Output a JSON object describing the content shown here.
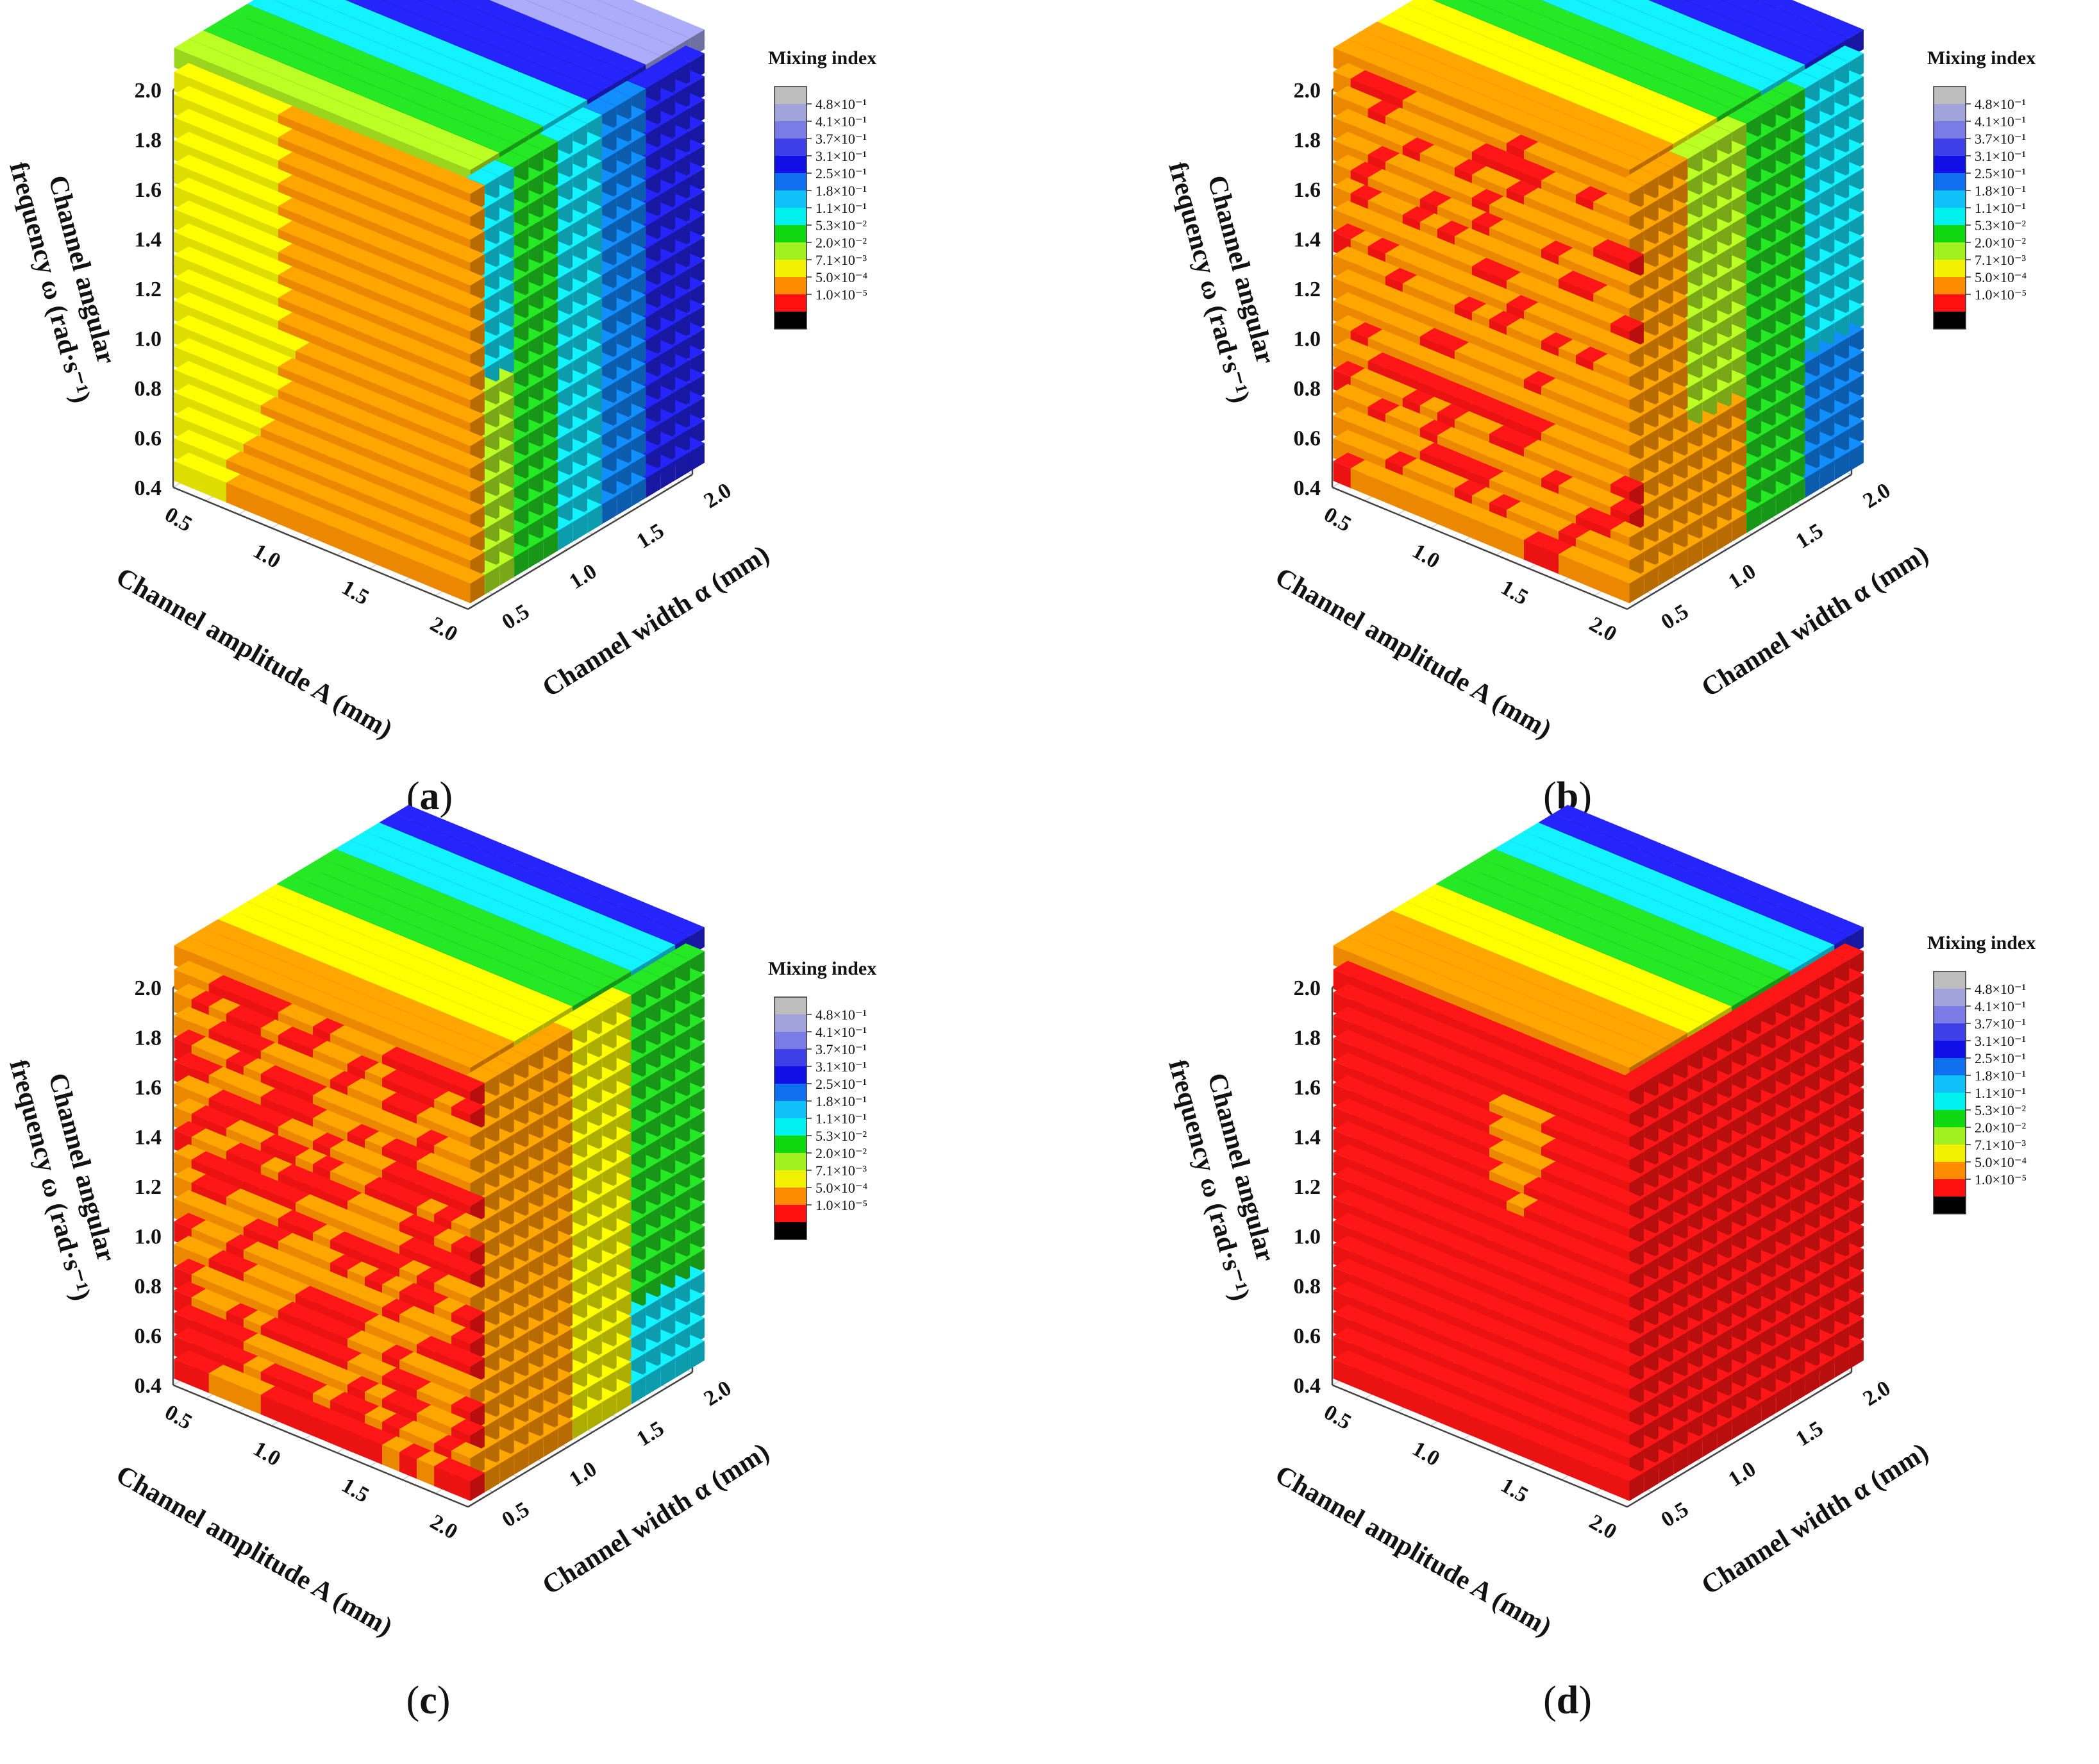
{
  "figure": {
    "panels": [
      {
        "id": "a",
        "label_prefix": "(",
        "label": "a",
        "label_suffix": ")"
      },
      {
        "id": "b",
        "label_prefix": "(",
        "label": "b",
        "label_suffix": ")"
      },
      {
        "id": "c",
        "label_prefix": "(",
        "label": "c",
        "label_suffix": ")"
      },
      {
        "id": "d",
        "label_prefix": "(",
        "label": "d",
        "label_suffix": ")"
      }
    ]
  },
  "chart_data": [
    {
      "panel": "a",
      "type": "scatter3d",
      "xlabel": "Channel amplitude A (mm)",
      "ylabel": "Channel width α (mm)",
      "zlabel_line1": "Channel angular",
      "zlabel_line2": "frequency ω (rad·s⁻¹)",
      "x_ticks": [
        "0.5",
        "1.0",
        "1.5",
        "2.0"
      ],
      "y_ticks": [
        "0.5",
        "1.0",
        "1.5",
        "2.0"
      ],
      "z_ticks": [
        "0.4",
        "0.6",
        "0.8",
        "1.0",
        "1.2",
        "1.4",
        "1.6",
        "1.8",
        "2.0"
      ],
      "xlim": [
        0.4,
        2.2
      ],
      "ylim": [
        0.4,
        2.2
      ],
      "zlim": [
        0.4,
        2.0
      ],
      "grid": true,
      "colorbar_title": "Mixing index",
      "colorbar_ticks": [
        "4.8×10⁻¹",
        "4.1×10⁻¹",
        "3.7×10⁻¹",
        "3.1×10⁻¹",
        "2.5×10⁻¹",
        "1.8×10⁻¹",
        "1.1×10⁻¹",
        "5.3×10⁻²",
        "2.0×10⁻²",
        "7.1×10⁻³",
        "5.0×10⁻⁴",
        "1.0×10⁻⁵"
      ],
      "colorbar_colors": [
        "#bdbdbd",
        "#a3a3dc",
        "#7b7be6",
        "#3f3fe8",
        "#1010e6",
        "#1070f0",
        "#10c0f8",
        "#00f0f0",
        "#10d810",
        "#a0f020",
        "#f0f000",
        "#ff8c00",
        "#ff1010",
        "#000000"
      ],
      "summary_face_colors": {
        "front": "orange-yellow",
        "right_side": "blue-green",
        "top": "blue-purple"
      }
    },
    {
      "panel": "b",
      "type": "scatter3d",
      "xlabel": "Channel amplitude A (mm)",
      "ylabel": "Channel width α (mm)",
      "zlabel_line1": "Channel angular",
      "zlabel_line2": "frequency ω (rad·s⁻¹)",
      "x_ticks": [
        "0.5",
        "1.0",
        "1.5",
        "2.0"
      ],
      "y_ticks": [
        "0.5",
        "1.0",
        "1.5",
        "2.0"
      ],
      "z_ticks": [
        "0.4",
        "0.6",
        "0.8",
        "1.0",
        "1.2",
        "1.4",
        "1.6",
        "1.8",
        "2.0"
      ],
      "xlim": [
        0.4,
        2.2
      ],
      "ylim": [
        0.4,
        2.2
      ],
      "zlim": [
        0.4,
        2.0
      ],
      "grid": true,
      "colorbar_title": "Mixing index",
      "colorbar_ticks": [
        "4.8×10⁻¹",
        "4.1×10⁻¹",
        "3.7×10⁻¹",
        "3.1×10⁻¹",
        "2.5×10⁻¹",
        "1.8×10⁻¹",
        "1.1×10⁻¹",
        "5.3×10⁻²",
        "2.0×10⁻²",
        "7.1×10⁻³",
        "5.0×10⁻⁴",
        "1.0×10⁻⁵"
      ],
      "colorbar_colors": [
        "#bdbdbd",
        "#a3a3dc",
        "#7b7be6",
        "#3f3fe8",
        "#1010e6",
        "#1070f0",
        "#10c0f8",
        "#00f0f0",
        "#10d810",
        "#a0f020",
        "#f0f000",
        "#ff8c00",
        "#ff1010",
        "#000000"
      ],
      "summary_face_colors": {
        "front": "orange with red patches",
        "right_side": "green-cyan-blue",
        "top": "green-blue"
      }
    },
    {
      "panel": "c",
      "type": "scatter3d",
      "xlabel": "Channel amplitude A (mm)",
      "ylabel": "Channel width α (mm)",
      "zlabel_line1": "Channel angular",
      "zlabel_line2": "frequency ω (rad·s⁻¹)",
      "x_ticks": [
        "0.5",
        "1.0",
        "1.5",
        "2.0"
      ],
      "y_ticks": [
        "0.5",
        "1.0",
        "1.5",
        "2.0"
      ],
      "z_ticks": [
        "0.4",
        "0.6",
        "0.8",
        "1.0",
        "1.2",
        "1.4",
        "1.6",
        "1.8",
        "2.0"
      ],
      "xlim": [
        0.4,
        2.2
      ],
      "ylim": [
        0.4,
        2.2
      ],
      "zlim": [
        0.4,
        2.0
      ],
      "grid": true,
      "colorbar_title": "Mixing index",
      "colorbar_ticks": [
        "4.8×10⁻¹",
        "4.1×10⁻¹",
        "3.7×10⁻¹",
        "3.1×10⁻¹",
        "2.5×10⁻¹",
        "1.8×10⁻¹",
        "1.1×10⁻¹",
        "5.3×10⁻²",
        "2.0×10⁻²",
        "7.1×10⁻³",
        "5.0×10⁻⁴",
        "1.0×10⁻⁵"
      ],
      "colorbar_colors": [
        "#bdbdbd",
        "#a3a3dc",
        "#7b7be6",
        "#3f3fe8",
        "#1010e6",
        "#1070f0",
        "#10c0f8",
        "#00f0f0",
        "#10d810",
        "#a0f020",
        "#f0f000",
        "#ff8c00",
        "#ff1010",
        "#000000"
      ],
      "summary_face_colors": {
        "front": "red-orange mix",
        "right_side": "orange-green",
        "top": "yellow-green-blue"
      }
    },
    {
      "panel": "d",
      "type": "scatter3d",
      "xlabel": "Channel amplitude A (mm)",
      "ylabel": "Channel width α (mm)",
      "zlabel_line1": "Channel angular",
      "zlabel_line2": "frequency ω (rad·s⁻¹)",
      "x_ticks": [
        "0.5",
        "1.0",
        "1.5",
        "2.0"
      ],
      "y_ticks": [
        "0.5",
        "1.0",
        "1.5",
        "2.0"
      ],
      "z_ticks": [
        "0.4",
        "0.6",
        "0.8",
        "1.0",
        "1.2",
        "1.4",
        "1.6",
        "1.8",
        "2.0"
      ],
      "xlim": [
        0.4,
        2.2
      ],
      "ylim": [
        0.4,
        2.2
      ],
      "zlim": [
        0.4,
        2.0
      ],
      "grid": true,
      "colorbar_title": "Mixing index",
      "colorbar_ticks": [
        "4.8×10⁻¹",
        "4.1×10⁻¹",
        "3.7×10⁻¹",
        "3.1×10⁻¹",
        "2.5×10⁻¹",
        "1.8×10⁻¹",
        "1.1×10⁻¹",
        "5.3×10⁻²",
        "2.0×10⁻²",
        "7.1×10⁻³",
        "5.0×10⁻⁴",
        "1.0×10⁻⁵"
      ],
      "colorbar_colors": [
        "#bdbdbd",
        "#a3a3dc",
        "#7b7be6",
        "#3f3fe8",
        "#1010e6",
        "#1070f0",
        "#10c0f8",
        "#00f0f0",
        "#10d810",
        "#a0f020",
        "#f0f000",
        "#ff8c00",
        "#ff1010",
        "#000000"
      ],
      "summary_face_colors": {
        "front": "red",
        "right_side": "red",
        "top": "yellow-green-blue",
        "front_patch": "orange"
      }
    }
  ]
}
